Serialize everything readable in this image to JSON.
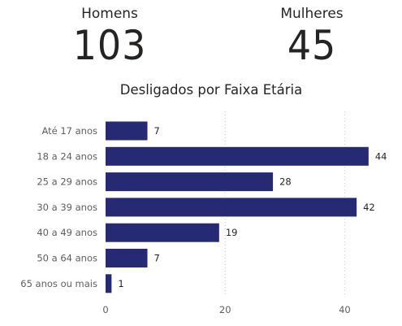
{
  "kpis": {
    "men": {
      "label": "Homens",
      "value": "103"
    },
    "women": {
      "label": "Mulheres",
      "value": "45"
    }
  },
  "chart_data": {
    "type": "bar",
    "orientation": "horizontal",
    "title": "Desligados por Faixa Etária",
    "categories": [
      "Até 17 anos",
      "18 a 24 anos",
      "25 a 29 anos",
      "30 a 39 anos",
      "40 a 49 anos",
      "50 a 64 anos",
      "65 anos ou mais"
    ],
    "values": [
      7,
      44,
      28,
      42,
      19,
      7,
      1
    ],
    "xticks": [
      0,
      20,
      40
    ],
    "xlim": [
      0,
      44
    ],
    "grid": "vertical dotted",
    "bar_color": "#252A72"
  }
}
